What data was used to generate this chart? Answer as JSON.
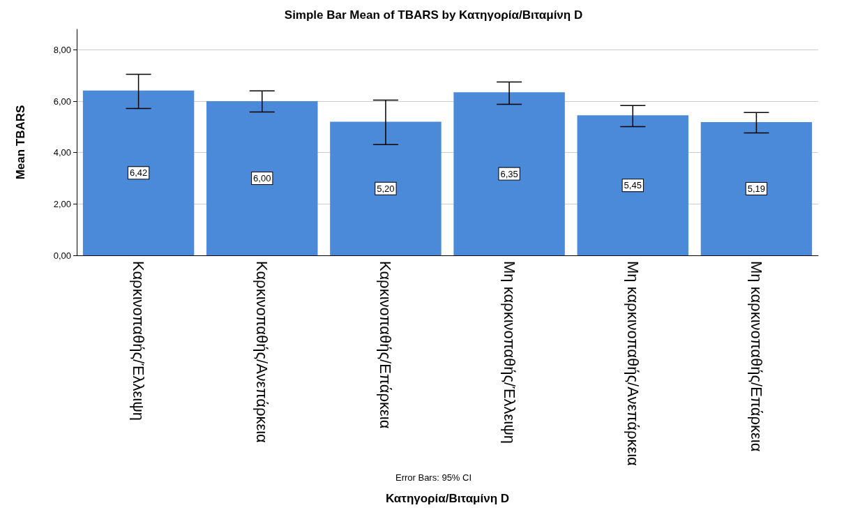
{
  "chart_data": {
    "type": "bar",
    "title": "Simple Bar Mean of TBARS by Κατηγορία/Βιταμίνη D",
    "xlabel": "Κατηγορία/Βιταμίνη D",
    "ylabel": "Mean TBARS",
    "categories": [
      "Καρκινοπαθής/Έλλειψη",
      "Καρκινοπαθής/Ανεπάρκεια",
      "Καρκινοπαθής/Επάρκεια",
      "Μη καρκινοπαθής/Έλλειψη",
      "Μη καρκινοπαθής/Ανεπάρκεια",
      "Μη καρκινοπαθής/Επάρκεια"
    ],
    "values": [
      6.42,
      6.0,
      5.2,
      6.35,
      5.45,
      5.19
    ],
    "value_labels": [
      "6,42",
      "6,00",
      "5,20",
      "6,35",
      "5,45",
      "5,19"
    ],
    "errors": [
      [
        5.72,
        7.05
      ],
      [
        5.58,
        6.4
      ],
      [
        4.31,
        6.04
      ],
      [
        5.88,
        6.75
      ],
      [
        5.01,
        5.83
      ],
      [
        4.77,
        5.56
      ]
    ],
    "color": "#4a8ad8",
    "ylim": [
      0,
      8.8
    ],
    "yticks": [
      {
        "value": 0,
        "label": "0,00"
      },
      {
        "value": 2,
        "label": "2,00"
      },
      {
        "value": 4,
        "label": "4,00"
      },
      {
        "value": 6,
        "label": "6,00"
      },
      {
        "value": 8,
        "label": "8,00"
      }
    ],
    "grid": "y",
    "annotations": [
      "Error Bars: 95% CI"
    ]
  }
}
